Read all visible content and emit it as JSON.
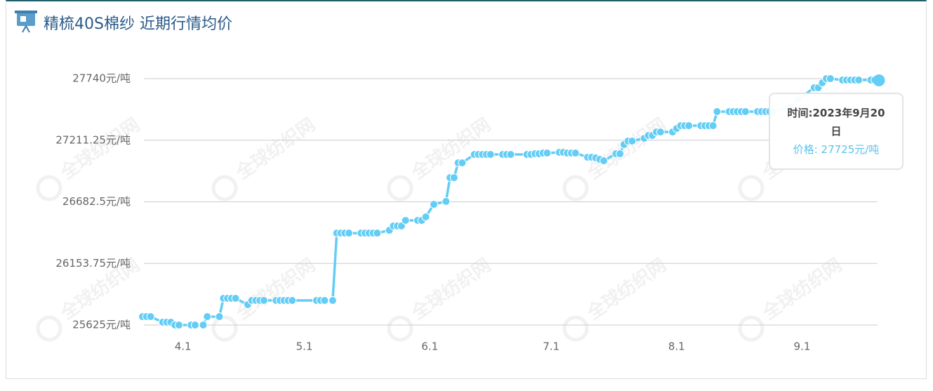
{
  "chart_data": {
    "type": "line",
    "title": "精梳40S棉纱 近期行情均价",
    "watermark": "全球纺织网",
    "x": [
      "3.22",
      "3.23",
      "3.24",
      "3.27",
      "3.28",
      "3.29",
      "3.30",
      "3.31",
      "4.3",
      "4.4",
      "4.6",
      "4.7",
      "4.10",
      "4.11",
      "4.12",
      "4.13",
      "4.14",
      "4.17",
      "4.18",
      "4.19",
      "4.20",
      "4.21",
      "4.24",
      "4.25",
      "4.26",
      "4.27",
      "4.28",
      "5.4",
      "5.5",
      "5.6",
      "5.8",
      "5.9",
      "5.10",
      "5.11",
      "5.12",
      "5.15",
      "5.16",
      "5.17",
      "5.18",
      "5.19",
      "5.22",
      "5.23",
      "5.24",
      "5.25",
      "5.26",
      "5.29",
      "5.30",
      "5.31",
      "6.2",
      "6.5",
      "6.6",
      "6.7",
      "6.8",
      "6.9",
      "6.12",
      "6.13",
      "6.14",
      "6.15",
      "6.16",
      "6.19",
      "6.20",
      "6.21",
      "6.25",
      "6.26",
      "6.27",
      "6.28",
      "6.29",
      "6.30",
      "7.3",
      "7.4",
      "7.5",
      "7.6",
      "7.7",
      "7.10",
      "7.11",
      "7.12",
      "7.13",
      "7.14",
      "7.17",
      "7.18",
      "7.19",
      "7.20",
      "7.21",
      "7.24",
      "7.25",
      "7.26",
      "7.27",
      "7.28",
      "7.31",
      "8.1",
      "8.2",
      "8.3",
      "8.4",
      "8.7",
      "8.8",
      "8.9",
      "8.10",
      "8.11",
      "8.14",
      "8.15",
      "8.16",
      "8.17",
      "8.18",
      "8.21",
      "8.22",
      "8.23",
      "8.24",
      "8.25",
      "8.29",
      "8.31",
      "9.4",
      "9.5",
      "9.6",
      "9.7",
      "9.8",
      "9.11",
      "9.12",
      "9.13",
      "9.14",
      "9.15",
      "9.18",
      "9.19",
      "9.20"
    ],
    "series": [
      {
        "name": "价格",
        "color": "#63cdf5",
        "values": [
          25697,
          25697,
          25697,
          25649,
          25649,
          25649,
          25625,
          25625,
          25625,
          25625,
          25625,
          25697,
          25697,
          25854,
          25854,
          25854,
          25854,
          25800,
          25836,
          25836,
          25836,
          25836,
          25836,
          25836,
          25836,
          25836,
          25836,
          25836,
          25836,
          25836,
          25836,
          26414,
          26414,
          26414,
          26414,
          26414,
          26414,
          26414,
          26414,
          26414,
          26438,
          26475,
          26475,
          26475,
          26523,
          26523,
          26523,
          26553,
          26661,
          26686,
          26890,
          26890,
          27017,
          27017,
          27089,
          27089,
          27089,
          27089,
          27089,
          27089,
          27089,
          27089,
          27089,
          27089,
          27095,
          27095,
          27101,
          27101,
          27107,
          27107,
          27101,
          27101,
          27101,
          27065,
          27065,
          27059,
          27047,
          27035,
          27095,
          27095,
          27174,
          27204,
          27204,
          27228,
          27252,
          27252,
          27282,
          27282,
          27282,
          27312,
          27336,
          27336,
          27336,
          27336,
          27336,
          27336,
          27336,
          27457,
          27457,
          27457,
          27457,
          27457,
          27457,
          27457,
          27457,
          27457,
          27457,
          27457,
          27500,
          27560,
          27662,
          27662,
          27704,
          27740,
          27740,
          27728,
          27728,
          27728,
          27728,
          27728,
          27728,
          27728,
          27725
        ]
      }
    ],
    "xlim": [
      "3.22",
      "9.20"
    ],
    "xticks": [
      "4.1",
      "5.1",
      "6.1",
      "7.1",
      "8.1",
      "9.1"
    ],
    "ylim": [
      25625,
      27740
    ],
    "yticks": [
      {
        "value": 25625,
        "label": "25625元/吨"
      },
      {
        "value": 26153.75,
        "label": "26153.75元/吨"
      },
      {
        "value": 26682.5,
        "label": "26682.5元/吨"
      },
      {
        "value": 27211.25,
        "label": "27211.25元/吨"
      },
      {
        "value": 27740,
        "label": "27740元/吨"
      }
    ],
    "grid": true,
    "tooltip": {
      "time": "时间:2023年9月20日",
      "price": "价格: 27725元/吨"
    }
  }
}
